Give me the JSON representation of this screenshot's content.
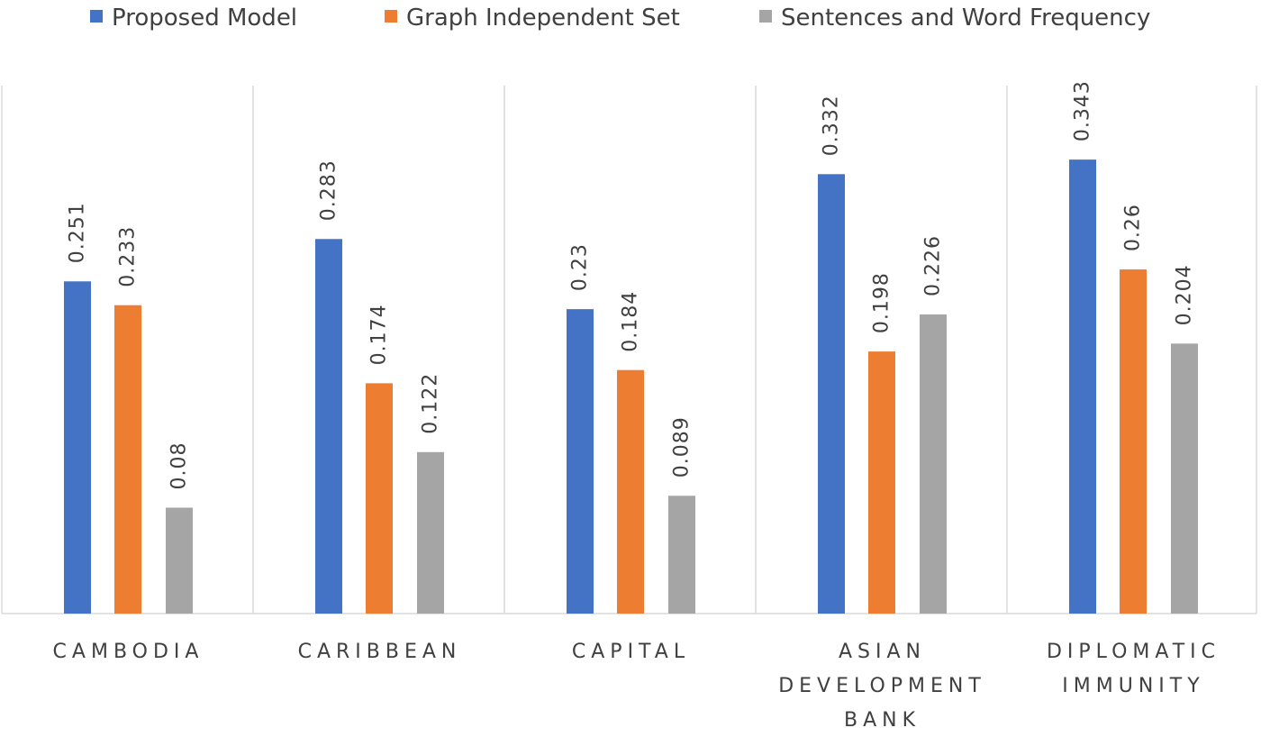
{
  "chart_data": {
    "type": "bar",
    "title": "",
    "xlabel": "",
    "ylabel": "",
    "ylim": [
      0,
      0.4
    ],
    "grid": false,
    "legend_position": "top",
    "categories": [
      [
        "CAMBODIA"
      ],
      [
        "CARIBBEAN"
      ],
      [
        "CAPITAL"
      ],
      [
        "ASIAN",
        "DEVELOPMENT",
        "BANK"
      ],
      [
        "DIPLOMATIC",
        "IMMUNITY"
      ]
    ],
    "series": [
      {
        "name": "Proposed Model",
        "color": "#4472C4",
        "values": [
          0.251,
          0.283,
          0.23,
          0.332,
          0.343
        ],
        "labels": [
          "0.251",
          "0.283",
          "0.23",
          "0.332",
          "0.343"
        ]
      },
      {
        "name": "Graph Independent Set",
        "color": "#ED7D31",
        "values": [
          0.233,
          0.174,
          0.184,
          0.198,
          0.26
        ],
        "labels": [
          "0.233",
          "0.174",
          "0.184",
          "0.198",
          "0.26"
        ]
      },
      {
        "name": "Sentences and Word Frequency",
        "color": "#A5A5A5",
        "values": [
          0.08,
          0.122,
          0.089,
          0.226,
          0.204
        ],
        "labels": [
          "0.08",
          "0.122",
          "0.089",
          "0.226",
          "0.204"
        ]
      }
    ],
    "divider_color": "#D9D9D9"
  }
}
